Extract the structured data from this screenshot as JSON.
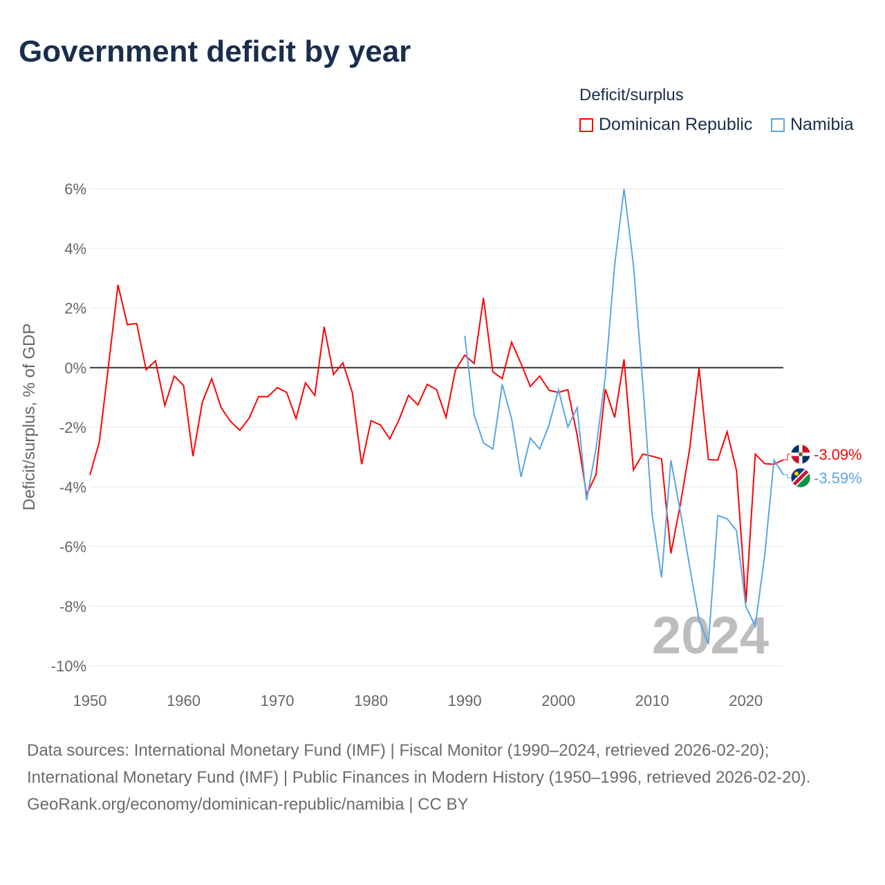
{
  "title": "Government deficit by year",
  "legend": {
    "title": "Deficit/surplus",
    "items": [
      "Dominican Republic",
      "Namibia"
    ]
  },
  "year_watermark": "2024",
  "footer": {
    "sources": "Data sources: International Monetary Fund (IMF) | Fiscal Monitor (1990–2024, retrieved 2026-02-20); International Monetary Fund (IMF) | Public Finances in Modern History (1950–1996, retrieved 2026-02-20).",
    "attribution": "GeoRank.org/economy/dominican-republic/namibia | CC BY"
  },
  "chart_data": {
    "type": "line",
    "title": "Government deficit by year",
    "xlabel": "",
    "ylabel": "Deficit/surplus, % of GDP",
    "xlim": [
      1950,
      2024
    ],
    "ylim": [
      -10,
      6
    ],
    "x_ticks": [
      "1950",
      "1960",
      "1970",
      "1980",
      "1990",
      "2000",
      "2010",
      "2020"
    ],
    "y_ticks": [
      "6%",
      "4%",
      "2%",
      "0%",
      "-2%",
      "-4%",
      "-6%",
      "-8%",
      "-10%"
    ],
    "grid": true,
    "legend_position": "top-right",
    "series": [
      {
        "name": "Dominican Republic",
        "color": "#ff0000",
        "end_label": "-3.09%",
        "start_year": 1950,
        "values": [
          -3.6,
          -2.5,
          0.1,
          2.78,
          1.44,
          1.48,
          -0.07,
          0.23,
          -1.27,
          -0.28,
          -0.6,
          -2.97,
          -1.16,
          -0.37,
          -1.34,
          -1.8,
          -2.1,
          -1.69,
          -0.97,
          -0.97,
          -0.67,
          -0.83,
          -1.71,
          -0.51,
          -0.93,
          1.37,
          -0.23,
          0.16,
          -0.83,
          -3.24,
          -1.78,
          -1.92,
          -2.39,
          -1.74,
          -0.93,
          -1.25,
          -0.56,
          -0.74,
          -1.67,
          -0.09,
          0.42,
          0.14,
          2.34,
          -0.14,
          -0.37,
          0.86,
          0.14,
          -0.63,
          -0.28,
          -0.76,
          -0.83,
          -0.74,
          -2.27,
          -4.26,
          -3.59,
          -0.72,
          -1.67,
          0.28,
          -3.43,
          -2.9,
          -2.97,
          -3.06,
          -6.23,
          -4.6,
          -2.73,
          -0.02,
          -3.08,
          -3.1,
          -2.15,
          -3.45,
          -7.88,
          -2.9,
          -3.22,
          -3.24,
          -3.09
        ]
      },
      {
        "name": "Namibia",
        "color": "#5ba4e6",
        "end_label": "-3.59%",
        "start_year": 1990,
        "values": [
          1.07,
          -1.58,
          -2.52,
          -2.73,
          -0.56,
          -1.71,
          -3.66,
          -2.36,
          -2.73,
          -1.92,
          -0.74,
          -1.99,
          -1.34,
          -4.45,
          -2.73,
          -0.3,
          3.45,
          6.0,
          3.45,
          -0.53,
          -4.93,
          -7.04,
          -3.1,
          -4.82,
          -6.67,
          -8.45,
          -9.27,
          -4.96,
          -5.07,
          -5.47,
          -8.02,
          -8.66,
          -6.32,
          -3.1,
          -3.59
        ]
      }
    ]
  }
}
